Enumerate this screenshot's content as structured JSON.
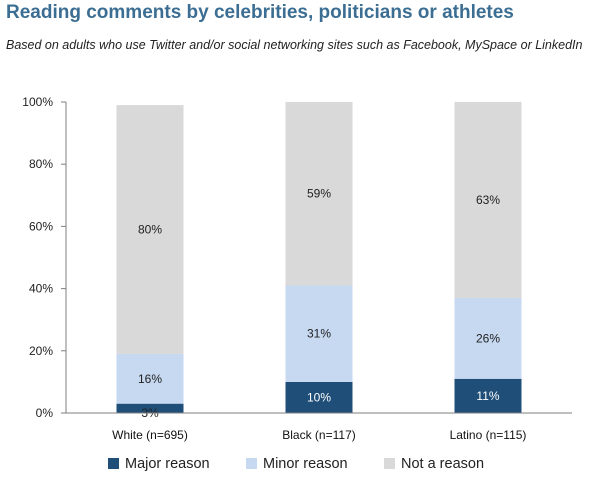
{
  "title": "Reading comments by celebrities, politicians or athletes",
  "subtitle": "Based on adults who use Twitter and/or social networking sites such as Facebook, MySpace or LinkedIn",
  "colors": {
    "major": "#1f4e79",
    "minor": "#c6d9f1",
    "not": "#d9d9d9",
    "axis": "#7f7f7f"
  },
  "chart_data": {
    "type": "bar",
    "stacked": true,
    "title": "Reading comments by celebrities, politicians or athletes",
    "subtitle": "Based on adults who use Twitter and/or social networking sites such as Facebook, MySpace or LinkedIn",
    "categories": [
      "White (n=695)",
      "Black (n=117)",
      "Latino (n=115)"
    ],
    "series": [
      {
        "name": "Major reason",
        "values": [
          3,
          10,
          11
        ]
      },
      {
        "name": "Minor reason",
        "values": [
          16,
          31,
          26
        ]
      },
      {
        "name": "Not a reason",
        "values": [
          80,
          59,
          63
        ]
      }
    ],
    "data_labels": [
      [
        "3%",
        "10%",
        "11%"
      ],
      [
        "16%",
        "31%",
        "26%"
      ],
      [
        "80%",
        "59%",
        "63%"
      ]
    ],
    "yticks": [
      "0%",
      "20%",
      "40%",
      "60%",
      "80%",
      "100%"
    ],
    "ylim": [
      0,
      100
    ],
    "grid": false,
    "legend_position": "bottom"
  }
}
